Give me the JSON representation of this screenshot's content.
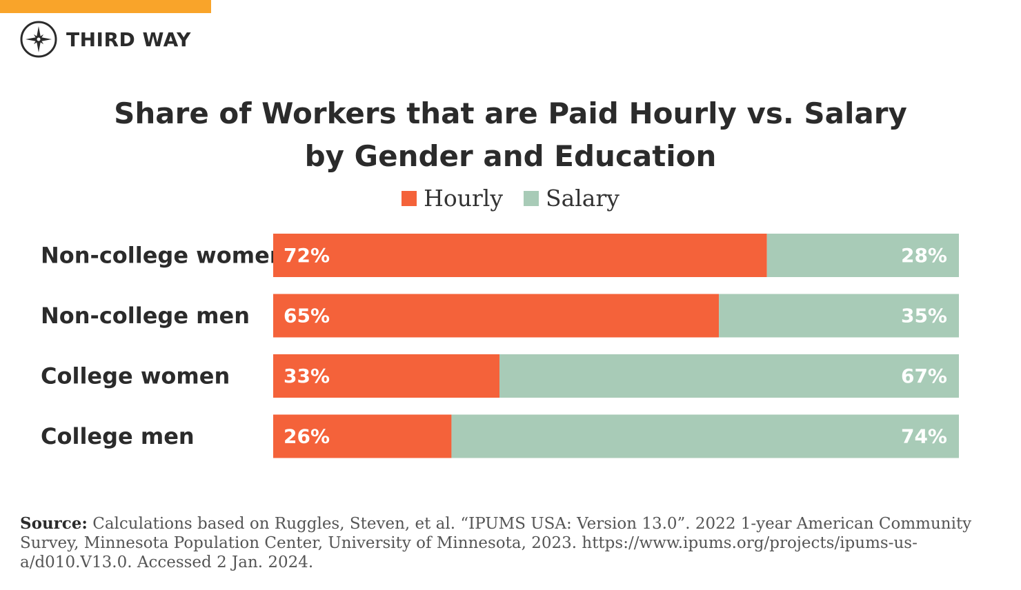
{
  "brand": {
    "name": "THIRD WAY",
    "stripe_color": "#f9a42a"
  },
  "colors": {
    "hourly": "#f4623a",
    "salary": "#a8cbb7",
    "text": "#2b2b2b"
  },
  "chart_data": {
    "type": "bar",
    "orientation": "horizontal",
    "stacked": true,
    "title_lines": [
      "Share of Workers that are Paid Hourly vs. Salary",
      "by Gender and Education"
    ],
    "categories": [
      "Non-college women",
      "Non-college men",
      "College women",
      "College men"
    ],
    "series": [
      {
        "name": "Hourly",
        "values": [
          72,
          65,
          33,
          26
        ],
        "labels": [
          "72%",
          "65%",
          "33%",
          "26%"
        ]
      },
      {
        "name": "Salary",
        "values": [
          28,
          35,
          67,
          74
        ],
        "labels": [
          "28%",
          "35%",
          "67%",
          "74%"
        ]
      }
    ],
    "xlim": [
      0,
      100
    ],
    "grid": false,
    "legend_position": "top-center"
  },
  "source": {
    "label": "Source:",
    "text": "Calculations based on Ruggles, Steven, et al. “IPUMS USA: Version 13.0”. 2022 1-year American Community Survey, Minnesota Population Center, University of Minnesota, 2023. https://www.ipums.org/projects/ipums-us-a/d010.V13.0. Accessed 2 Jan. 2024."
  }
}
